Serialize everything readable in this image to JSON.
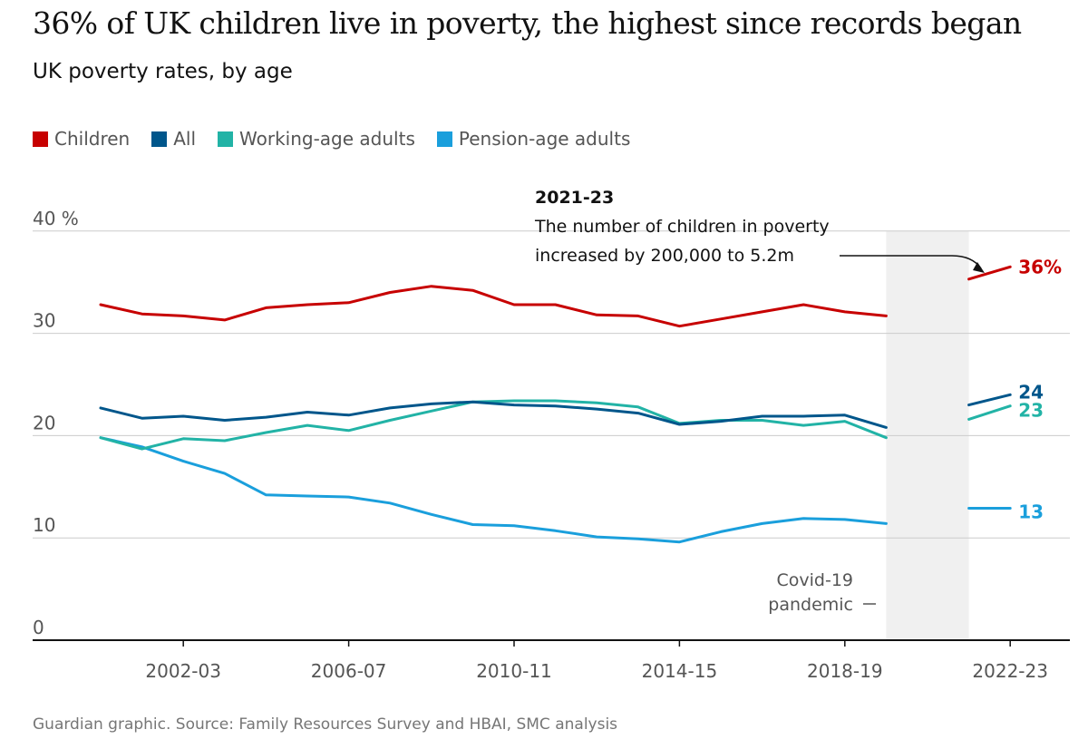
{
  "header": {
    "title": "36% of UK children live in poverty, the highest since records began",
    "subtitle": "UK poverty rates, by age"
  },
  "source": "Guardian graphic. Source: Family Resources Survey and HBAI, SMC analysis",
  "annotation": {
    "heading": "2021-23",
    "line1": "The number of children in poverty",
    "line2": "increased by 200,000 to 5.2m"
  },
  "covid_label": {
    "line1": "Covid-19",
    "line2": "pandemic",
    "period": [
      "2019-20",
      "2021-22"
    ]
  },
  "chart_data": {
    "type": "line",
    "title": "36% of UK children live in poverty, the highest since records began",
    "subtitle": "UK poverty rates, by age",
    "x": [
      "2000-01",
      "2001-02",
      "2002-03",
      "2003-04",
      "2004-05",
      "2005-06",
      "2006-07",
      "2007-08",
      "2008-09",
      "2009-10",
      "2010-11",
      "2011-12",
      "2012-13",
      "2013-14",
      "2014-15",
      "2015-16",
      "2016-17",
      "2017-18",
      "2018-19",
      "2019-20",
      "2020-21",
      "2021-22",
      "2022-23"
    ],
    "x_tick_labels": [
      "2002-03",
      "2006-07",
      "2010-11",
      "2014-15",
      "2018-19",
      "2022-23"
    ],
    "y_ticks": [
      0,
      10,
      20,
      30,
      40
    ],
    "y_tick_labels": [
      "0",
      "10",
      "20",
      "30",
      "40 %"
    ],
    "ylim": [
      0,
      40
    ],
    "grid": "horizontal",
    "legend_position": "top-left",
    "shaded_region": [
      "2019-20",
      "2021-22"
    ],
    "series": [
      {
        "name": "Children",
        "color": "#c70000",
        "end_label": "36%",
        "values": [
          32.8,
          31.9,
          31.7,
          31.3,
          32.5,
          32.8,
          33.0,
          34.0,
          34.6,
          34.2,
          32.8,
          32.8,
          31.8,
          31.7,
          30.7,
          31.4,
          32.1,
          32.8,
          32.1,
          31.7,
          null,
          35.3,
          36.5
        ]
      },
      {
        "name": "All",
        "color": "#00568b",
        "end_label": "24",
        "values": [
          22.7,
          21.7,
          21.9,
          21.5,
          21.8,
          22.3,
          22.0,
          22.7,
          23.1,
          23.3,
          23.0,
          22.9,
          22.6,
          22.2,
          21.1,
          21.4,
          21.9,
          21.9,
          22.0,
          20.8,
          null,
          23.0,
          24.0
        ]
      },
      {
        "name": "Working-age adults",
        "color": "#22b3a6",
        "end_label": "23",
        "values": [
          19.8,
          18.7,
          19.7,
          19.5,
          20.3,
          21.0,
          20.5,
          21.5,
          22.4,
          23.3,
          23.4,
          23.4,
          23.2,
          22.8,
          21.2,
          21.5,
          21.5,
          21.0,
          21.4,
          19.8,
          null,
          21.6,
          22.9
        ]
      },
      {
        "name": "Pension-age adults",
        "color": "#1a9fdc",
        "end_label": "13",
        "values": [
          19.8,
          18.9,
          17.5,
          16.3,
          14.2,
          14.1,
          14.0,
          13.4,
          12.3,
          11.3,
          11.2,
          10.7,
          10.1,
          9.9,
          9.6,
          10.6,
          11.4,
          11.9,
          11.8,
          11.4,
          null,
          12.9,
          12.9
        ]
      }
    ]
  }
}
